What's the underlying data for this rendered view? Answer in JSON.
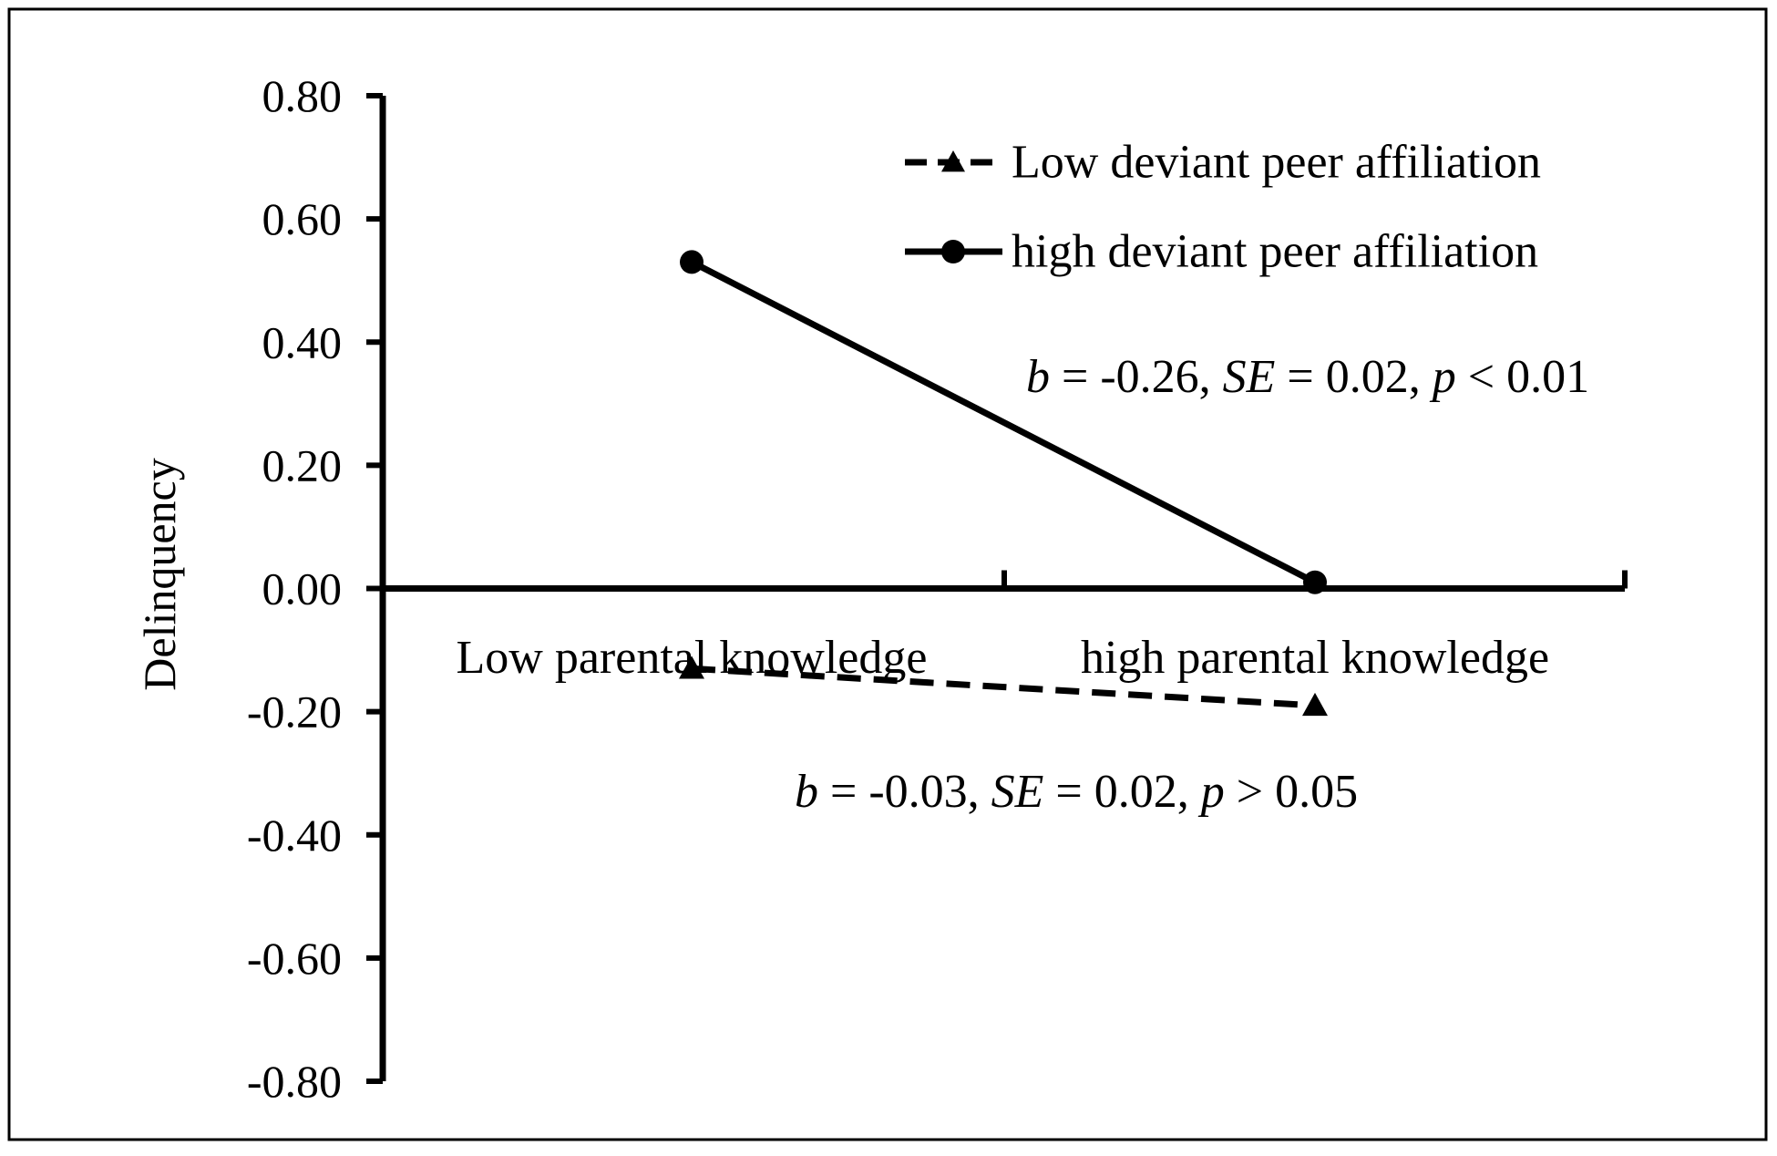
{
  "chart_data": {
    "type": "line",
    "ylabel": "Delinquency",
    "xlabel": "",
    "ylim": [
      -0.8,
      0.8
    ],
    "yticks": [
      "0.80",
      "0.60",
      "0.40",
      "0.20",
      "0.00",
      "-0.20",
      "-0.40",
      "-0.60",
      "-0.80"
    ],
    "categories": [
      "Low parental knowledge",
      "high parental knowledge"
    ],
    "series": [
      {
        "name": "Low deviant peer affiliation",
        "values": [
          -0.13,
          -0.19
        ],
        "line_style": "dashed",
        "marker": "triangle",
        "color": "#000000"
      },
      {
        "name": "high deviant peer affiliation",
        "values": [
          0.53,
          0.01
        ],
        "line_style": "solid",
        "marker": "circle",
        "color": "#000000"
      }
    ],
    "annotations": [
      {
        "series": "high deviant peer affiliation",
        "parts": [
          {
            "t": "b",
            "i": true
          },
          {
            "t": " = -0.26, "
          },
          {
            "t": "SE",
            "i": true
          },
          {
            "t": " = 0.02, "
          },
          {
            "t": "p",
            "i": true
          },
          {
            "t": " < 0.01"
          }
        ]
      },
      {
        "series": "Low deviant peer affiliation",
        "parts": [
          {
            "t": "b",
            "i": true
          },
          {
            "t": " = -0.03, "
          },
          {
            "t": "SE",
            "i": true
          },
          {
            "t": " = 0.02, "
          },
          {
            "t": "p",
            "i": true
          },
          {
            "t": " > 0.05"
          }
        ]
      }
    ],
    "legend": "top-right",
    "grid": false
  }
}
